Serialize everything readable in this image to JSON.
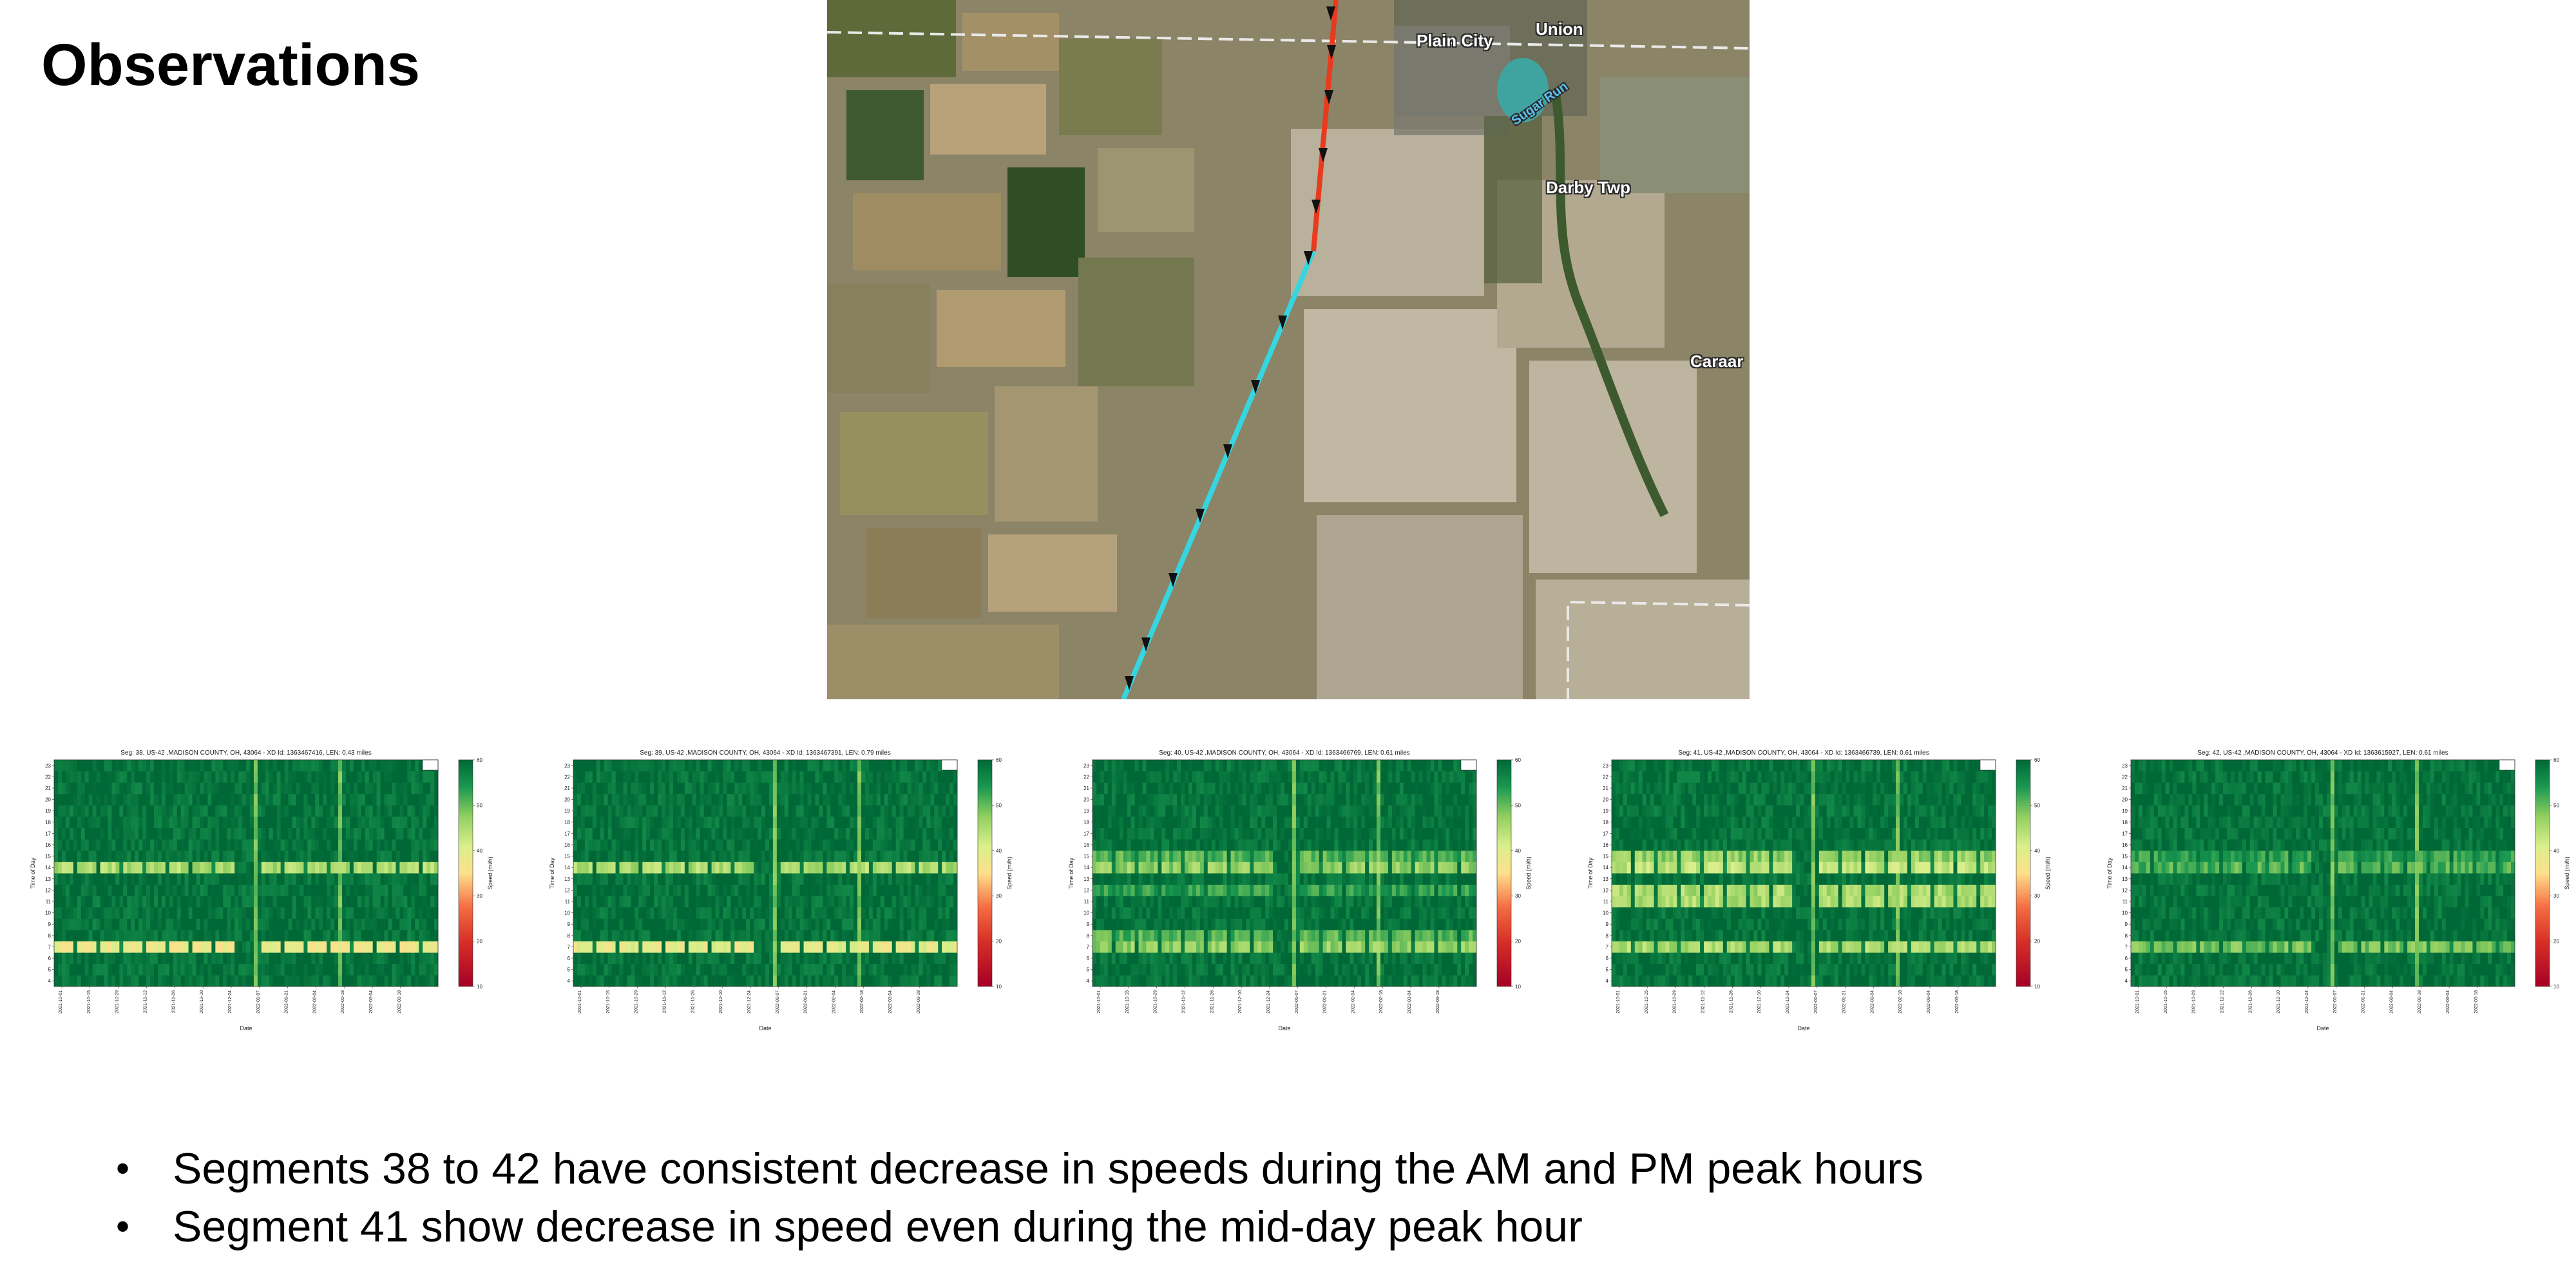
{
  "slide": {
    "title": "Observations",
    "bullets": [
      "Segments 38 to 42 have consistent decrease in speeds during the AM and PM peak hours",
      "Segment 41 show decrease in speed even during the mid-day peak hour"
    ]
  },
  "map": {
    "labels": [
      "Plain City",
      "Union",
      "Darby Twp",
      "Caraar",
      "Sugar Run"
    ],
    "route_colors": {
      "congested": "#e83a1f",
      "free_flow": "#35d6e0",
      "markers": "#111111"
    }
  },
  "chart_data": [
    {
      "type": "heatmap",
      "title": "Seg: 38, US-42 ,MADISON COUNTY, OH, 43064 - XD Id: 1363467416, LEN: 0.43 miles",
      "xlabel": "Date",
      "ylabel": "Time of Day",
      "colorbar_label": "Speed (mi/h)",
      "colorbar_ticks": [
        10,
        20,
        30,
        40,
        50,
        60
      ],
      "x_ticks": [
        "2021-10-01",
        "2021-10-15",
        "2021-10-29",
        "2021-11-12",
        "2021-11-26",
        "2021-12-10",
        "2021-12-24",
        "2022-01-07",
        "2022-01-21",
        "2022-02-04",
        "2022-02-18",
        "2022-03-04",
        "2022-03-18"
      ],
      "y_ticks": [
        4,
        5,
        6,
        7,
        8,
        9,
        10,
        11,
        12,
        13,
        14,
        15,
        16,
        17,
        18,
        19,
        20,
        21,
        22,
        23
      ],
      "slow_hours": [
        {
          "hour": 7,
          "speed": 35
        },
        {
          "hour": 14,
          "speed": 42
        }
      ],
      "colormap": "RdYlGn"
    },
    {
      "type": "heatmap",
      "title": "Seg: 39, US-42 ,MADISON COUNTY, OH, 43064 - XD Id: 1363467391, LEN: 0.79 miles",
      "xlabel": "Date",
      "ylabel": "Time of Day",
      "colorbar_label": "Speed (mi/h)",
      "colorbar_ticks": [
        10,
        20,
        30,
        40,
        50,
        60
      ],
      "x_ticks": [
        "2021-10-01",
        "2021-10-15",
        "2021-10-29",
        "2021-11-12",
        "2021-11-26",
        "2021-12-10",
        "2021-12-24",
        "2022-01-07",
        "2022-01-21",
        "2022-02-04",
        "2022-02-18",
        "2022-03-04",
        "2022-03-18"
      ],
      "y_ticks": [
        4,
        5,
        6,
        7,
        8,
        9,
        10,
        11,
        12,
        13,
        14,
        15,
        16,
        17,
        18,
        19,
        20,
        21,
        22,
        23
      ],
      "slow_hours": [
        {
          "hour": 7,
          "speed": 36
        },
        {
          "hour": 14,
          "speed": 42
        }
      ],
      "colormap": "RdYlGn"
    },
    {
      "type": "heatmap",
      "title": "Seg: 40, US-42 ,MADISON COUNTY, OH, 43064 - XD Id: 1363466769, LEN: 0.61 miles",
      "xlabel": "Date",
      "ylabel": "Time of Day",
      "colorbar_label": "Speed (mi/h)",
      "colorbar_ticks": [
        10,
        20,
        30,
        40,
        50,
        60
      ],
      "x_ticks": [
        "2021-10-01",
        "2021-10-15",
        "2021-10-29",
        "2021-11-12",
        "2021-11-26",
        "2021-12-10",
        "2021-12-24",
        "2022-01-07",
        "2022-01-21",
        "2022-02-04",
        "2022-02-18",
        "2022-03-04",
        "2022-03-18"
      ],
      "y_ticks": [
        4,
        5,
        6,
        7,
        8,
        9,
        10,
        11,
        12,
        13,
        14,
        15,
        16,
        17,
        18,
        19,
        20,
        21,
        22,
        23
      ],
      "slow_hours": [
        {
          "hour": 7,
          "speed": 44
        },
        {
          "hour": 8,
          "speed": 48
        },
        {
          "hour": 12,
          "speed": 50
        },
        {
          "hour": 14,
          "speed": 44
        },
        {
          "hour": 15,
          "speed": 48
        }
      ],
      "colormap": "RdYlGn"
    },
    {
      "type": "heatmap",
      "title": "Seg: 41, US-42 ,MADISON COUNTY, OH, 43064 - XD Id: 1363466739, LEN: 0.61 miles",
      "xlabel": "Date",
      "ylabel": "Time of Day",
      "colorbar_label": "Speed (mi/h)",
      "colorbar_ticks": [
        10,
        20,
        30,
        40,
        50,
        60
      ],
      "x_ticks": [
        "2021-10-01",
        "2021-10-15",
        "2021-10-29",
        "2021-11-12",
        "2021-11-26",
        "2021-12-10",
        "2021-12-24",
        "2022-01-07",
        "2022-01-21",
        "2022-02-04",
        "2022-02-18",
        "2022-03-04",
        "2022-03-18"
      ],
      "y_ticks": [
        4,
        5,
        6,
        7,
        8,
        9,
        10,
        11,
        12,
        13,
        14,
        15,
        16,
        17,
        18,
        19,
        20,
        21,
        22,
        23
      ],
      "slow_hours": [
        {
          "hour": 7,
          "speed": 42
        },
        {
          "hour": 11,
          "speed": 42
        },
        {
          "hour": 12,
          "speed": 42
        },
        {
          "hour": 14,
          "speed": 40
        },
        {
          "hour": 15,
          "speed": 44
        }
      ],
      "colormap": "RdYlGn"
    },
    {
      "type": "heatmap",
      "title": "Seg: 42, US-42 ,MADISON COUNTY, OH, 43064 - XD Id: 1363615927, LEN: 0.61 miles",
      "xlabel": "Date",
      "ylabel": "Time of Day",
      "colorbar_label": "Speed (mi/h)",
      "colorbar_ticks": [
        10,
        20,
        30,
        40,
        50,
        60
      ],
      "x_ticks": [
        "2021-10-01",
        "2021-10-15",
        "2021-10-29",
        "2021-11-12",
        "2021-11-26",
        "2021-12-10",
        "2021-12-24",
        "2022-01-07",
        "2022-01-21",
        "2022-02-04",
        "2022-02-18",
        "2022-03-04",
        "2022-03-18"
      ],
      "y_ticks": [
        4,
        5,
        6,
        7,
        8,
        9,
        10,
        11,
        12,
        13,
        14,
        15,
        16,
        17,
        18,
        19,
        20,
        21,
        22,
        23
      ],
      "slow_hours": [
        {
          "hour": 7,
          "speed": 46
        },
        {
          "hour": 14,
          "speed": 48
        },
        {
          "hour": 15,
          "speed": 50
        }
      ],
      "colormap": "RdYlGn"
    }
  ]
}
